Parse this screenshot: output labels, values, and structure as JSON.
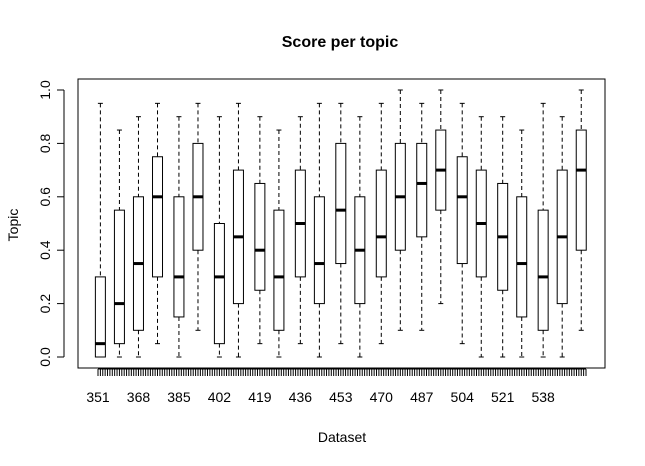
{
  "chart_data": {
    "type": "boxplot",
    "title": "Score per topic",
    "xlabel": "Dataset",
    "ylabel": "Topic",
    "ylim": [
      0.0,
      1.0
    ],
    "y_ticks": [
      "0.0",
      "0.2",
      "0.4",
      "0.6",
      "0.8",
      "1.0"
    ],
    "x_tick_labels": [
      "351",
      "368",
      "385",
      "402",
      "419",
      "436",
      "453",
      "470",
      "487",
      "504",
      "521",
      "538"
    ],
    "x_first": 351,
    "x_last": 556,
    "x_label_step": 17,
    "series": [
      {
        "values": [
          {
            "x": 352,
            "q1": 0.0,
            "median": 0.05,
            "q3": 0.3,
            "whisker_low": 0.0,
            "whisker_high": 0.95
          },
          {
            "x": 360,
            "q1": 0.05,
            "median": 0.2,
            "q3": 0.55,
            "whisker_low": 0.0,
            "whisker_high": 0.85
          },
          {
            "x": 368,
            "q1": 0.1,
            "median": 0.35,
            "q3": 0.6,
            "whisker_low": 0.0,
            "whisker_high": 0.9
          },
          {
            "x": 376,
            "q1": 0.3,
            "median": 0.6,
            "q3": 0.75,
            "whisker_low": 0.05,
            "whisker_high": 0.95
          },
          {
            "x": 385,
            "q1": 0.15,
            "median": 0.3,
            "q3": 0.6,
            "whisker_low": 0.0,
            "whisker_high": 0.9
          },
          {
            "x": 393,
            "q1": 0.4,
            "median": 0.6,
            "q3": 0.8,
            "whisker_low": 0.1,
            "whisker_high": 0.95
          },
          {
            "x": 402,
            "q1": 0.05,
            "median": 0.3,
            "q3": 0.5,
            "whisker_low": 0.0,
            "whisker_high": 0.9
          },
          {
            "x": 410,
            "q1": 0.2,
            "median": 0.45,
            "q3": 0.7,
            "whisker_low": 0.0,
            "whisker_high": 0.95
          },
          {
            "x": 419,
            "q1": 0.25,
            "median": 0.4,
            "q3": 0.65,
            "whisker_low": 0.05,
            "whisker_high": 0.9
          },
          {
            "x": 427,
            "q1": 0.1,
            "median": 0.3,
            "q3": 0.55,
            "whisker_low": 0.0,
            "whisker_high": 0.85
          },
          {
            "x": 436,
            "q1": 0.3,
            "median": 0.5,
            "q3": 0.7,
            "whisker_low": 0.05,
            "whisker_high": 0.9
          },
          {
            "x": 444,
            "q1": 0.2,
            "median": 0.35,
            "q3": 0.6,
            "whisker_low": 0.0,
            "whisker_high": 0.95
          },
          {
            "x": 453,
            "q1": 0.35,
            "median": 0.55,
            "q3": 0.8,
            "whisker_low": 0.05,
            "whisker_high": 0.95
          },
          {
            "x": 461,
            "q1": 0.2,
            "median": 0.4,
            "q3": 0.6,
            "whisker_low": 0.0,
            "whisker_high": 0.9
          },
          {
            "x": 470,
            "q1": 0.3,
            "median": 0.45,
            "q3": 0.7,
            "whisker_low": 0.05,
            "whisker_high": 0.95
          },
          {
            "x": 478,
            "q1": 0.4,
            "median": 0.6,
            "q3": 0.8,
            "whisker_low": 0.1,
            "whisker_high": 1.0
          },
          {
            "x": 487,
            "q1": 0.45,
            "median": 0.65,
            "q3": 0.8,
            "whisker_low": 0.1,
            "whisker_high": 0.95
          },
          {
            "x": 495,
            "q1": 0.55,
            "median": 0.7,
            "q3": 0.85,
            "whisker_low": 0.2,
            "whisker_high": 1.0
          },
          {
            "x": 504,
            "q1": 0.35,
            "median": 0.6,
            "q3": 0.75,
            "whisker_low": 0.05,
            "whisker_high": 0.95
          },
          {
            "x": 512,
            "q1": 0.3,
            "median": 0.5,
            "q3": 0.7,
            "whisker_low": 0.0,
            "whisker_high": 0.9
          },
          {
            "x": 521,
            "q1": 0.25,
            "median": 0.45,
            "q3": 0.65,
            "whisker_low": 0.0,
            "whisker_high": 0.9
          },
          {
            "x": 529,
            "q1": 0.15,
            "median": 0.35,
            "q3": 0.6,
            "whisker_low": 0.0,
            "whisker_high": 0.85
          },
          {
            "x": 538,
            "q1": 0.1,
            "median": 0.3,
            "q3": 0.55,
            "whisker_low": 0.0,
            "whisker_high": 0.95
          },
          {
            "x": 546,
            "q1": 0.2,
            "median": 0.45,
            "q3": 0.7,
            "whisker_low": 0.0,
            "whisker_high": 0.9
          },
          {
            "x": 554,
            "q1": 0.4,
            "median": 0.7,
            "q3": 0.85,
            "whisker_low": 0.1,
            "whisker_high": 1.0
          }
        ]
      }
    ],
    "grid": false,
    "legend": "none"
  }
}
